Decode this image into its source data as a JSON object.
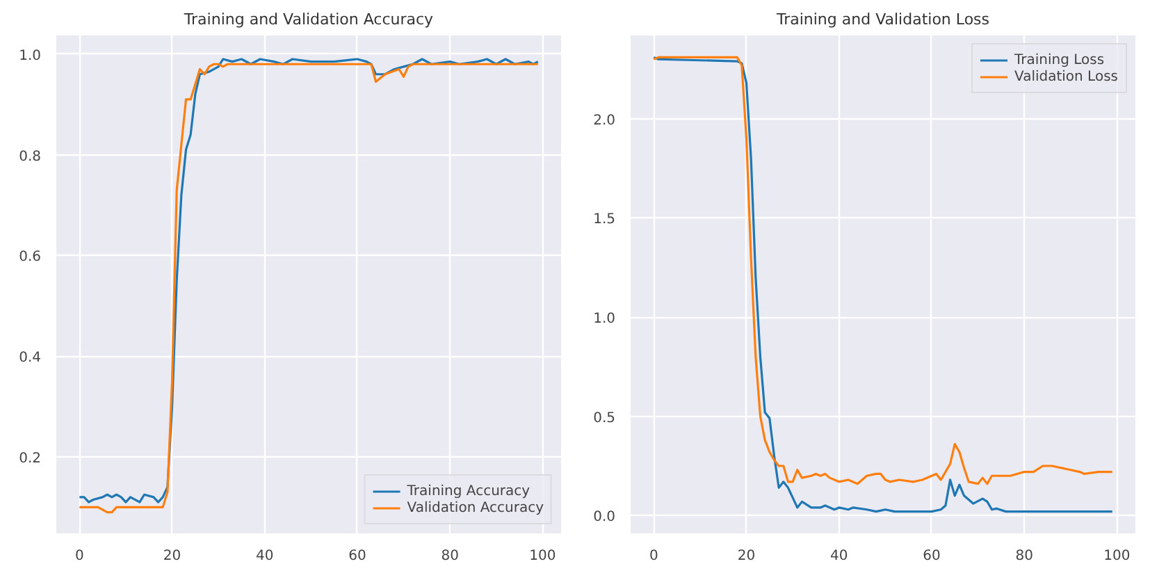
{
  "chart_data": [
    {
      "type": "line",
      "title": "Training and Validation Accuracy",
      "xlim": [
        -5,
        104
      ],
      "xticks": [
        0,
        20,
        40,
        60,
        80,
        100
      ],
      "ylim": [
        0.048,
        1.037
      ],
      "yticks": [
        {
          "value": 0.2,
          "label": "0.2"
        },
        {
          "value": 0.4,
          "label": "0.4"
        },
        {
          "value": 0.6,
          "label": "0.6"
        },
        {
          "value": 0.8,
          "label": "0.8"
        },
        {
          "value": 1.0,
          "label": "1.0"
        }
      ],
      "grid": true,
      "legend": "bottom right",
      "series": [
        {
          "name": "Training Accuracy",
          "color": "#1f77b4",
          "x": [
            0,
            1,
            2,
            3,
            5,
            6,
            7,
            8,
            9,
            10,
            11,
            13,
            14,
            16,
            17,
            18,
            19,
            20,
            21,
            22,
            23,
            24,
            25,
            26,
            28,
            30,
            31,
            33,
            35,
            37,
            39,
            42,
            44,
            46,
            50,
            55,
            60,
            62,
            63,
            64,
            66,
            68,
            70,
            72,
            74,
            76,
            80,
            82,
            86,
            88,
            90,
            92,
            94,
            97,
            98,
            99
          ],
          "values": [
            0.12,
            0.12,
            0.11,
            0.115,
            0.12,
            0.125,
            0.12,
            0.125,
            0.12,
            0.11,
            0.12,
            0.11,
            0.125,
            0.12,
            0.11,
            0.12,
            0.14,
            0.3,
            0.55,
            0.72,
            0.81,
            0.84,
            0.92,
            0.96,
            0.965,
            0.975,
            0.99,
            0.985,
            0.99,
            0.98,
            0.99,
            0.985,
            0.98,
            0.99,
            0.985,
            0.985,
            0.99,
            0.985,
            0.98,
            0.96,
            0.96,
            0.97,
            0.975,
            0.98,
            0.99,
            0.98,
            0.985,
            0.98,
            0.985,
            0.99,
            0.98,
            0.99,
            0.98,
            0.985,
            0.98,
            0.985
          ]
        },
        {
          "name": "Validation Accuracy",
          "color": "#ff7f0e",
          "x": [
            0,
            4,
            6,
            7,
            8,
            18,
            19,
            20,
            21,
            22,
            23,
            24,
            25,
            26,
            27,
            28,
            29,
            30,
            31,
            32,
            35,
            63,
            64,
            66,
            69,
            70,
            71,
            72,
            99
          ],
          "values": [
            0.1,
            0.1,
            0.09,
            0.09,
            0.1,
            0.1,
            0.13,
            0.35,
            0.73,
            0.82,
            0.91,
            0.91,
            0.94,
            0.97,
            0.96,
            0.975,
            0.98,
            0.98,
            0.975,
            0.98,
            0.98,
            0.98,
            0.945,
            0.96,
            0.97,
            0.955,
            0.975,
            0.98,
            0.98
          ]
        }
      ]
    },
    {
      "type": "line",
      "title": "Training and Validation Loss",
      "xlim": [
        -5,
        104
      ],
      "xticks": [
        0,
        20,
        40,
        60,
        80,
        100
      ],
      "ylim": [
        -0.09,
        2.42
      ],
      "yticks": [
        {
          "value": 0,
          "label": "0.0"
        },
        {
          "value": 0.5,
          "label": "0.5"
        },
        {
          "value": 1.0,
          "label": "1.0"
        },
        {
          "value": 1.5,
          "label": "1.5"
        },
        {
          "value": 2.0,
          "label": "2.0"
        }
      ],
      "grid": true,
      "legend": "top right",
      "series": [
        {
          "name": "Training Loss",
          "color": "#1f77b4",
          "x": [
            0,
            1,
            18,
            19,
            20,
            21,
            22,
            23,
            24,
            25,
            26,
            27,
            28,
            29,
            30,
            31,
            32,
            34,
            36,
            37,
            39,
            40,
            42,
            43,
            46,
            48,
            50,
            52,
            56,
            60,
            62,
            63,
            64,
            65,
            66,
            67,
            69,
            71,
            72,
            73,
            74,
            76,
            80,
            85,
            90,
            95,
            99
          ],
          "values": [
            2.31,
            2.3,
            2.29,
            2.28,
            2.18,
            1.8,
            1.2,
            0.8,
            0.52,
            0.49,
            0.3,
            0.14,
            0.17,
            0.14,
            0.09,
            0.04,
            0.07,
            0.04,
            0.04,
            0.05,
            0.03,
            0.04,
            0.03,
            0.04,
            0.03,
            0.02,
            0.03,
            0.02,
            0.02,
            0.02,
            0.03,
            0.05,
            0.18,
            0.1,
            0.155,
            0.1,
            0.06,
            0.085,
            0.07,
            0.03,
            0.035,
            0.02,
            0.02,
            0.02,
            0.02,
            0.02,
            0.02
          ]
        },
        {
          "name": "Validation Loss",
          "color": "#ff7f0e",
          "x": [
            0,
            1,
            18,
            19,
            20,
            21,
            22,
            23,
            24,
            25,
            26,
            27,
            28,
            29,
            30,
            31,
            32,
            34,
            35,
            36,
            37,
            38,
            40,
            42,
            44,
            46,
            48,
            49,
            50,
            51,
            53,
            56,
            58,
            60,
            61,
            62,
            64,
            65,
            66,
            67,
            68,
            70,
            71,
            72,
            73,
            75,
            77,
            80,
            82,
            84,
            86,
            88,
            90,
            92,
            93,
            96,
            99
          ],
          "values": [
            2.3,
            2.31,
            2.31,
            2.27,
            1.9,
            1.3,
            0.8,
            0.5,
            0.38,
            0.32,
            0.28,
            0.25,
            0.25,
            0.17,
            0.17,
            0.23,
            0.19,
            0.2,
            0.21,
            0.2,
            0.21,
            0.19,
            0.17,
            0.18,
            0.16,
            0.2,
            0.21,
            0.21,
            0.18,
            0.17,
            0.18,
            0.17,
            0.18,
            0.2,
            0.21,
            0.18,
            0.26,
            0.36,
            0.32,
            0.24,
            0.17,
            0.16,
            0.19,
            0.16,
            0.2,
            0.2,
            0.2,
            0.22,
            0.22,
            0.25,
            0.25,
            0.24,
            0.23,
            0.22,
            0.21,
            0.22,
            0.22
          ]
        }
      ]
    }
  ]
}
